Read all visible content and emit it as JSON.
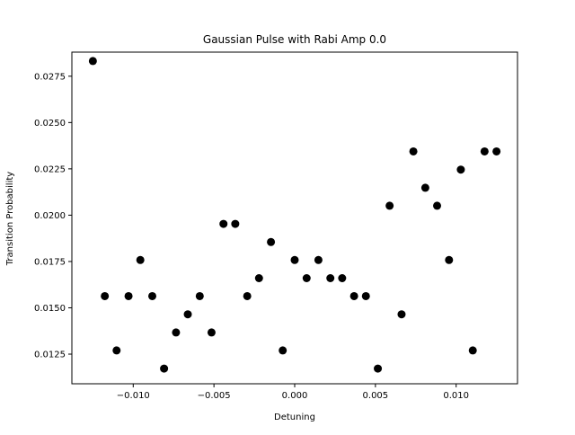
{
  "chart_data": {
    "type": "scatter",
    "title": "Gaussian Pulse with Rabi Amp 0.0",
    "xlabel": "Detuning",
    "ylabel": "Transition Probability",
    "xlim": [
      -0.0138,
      0.0138
    ],
    "ylim": [
      0.0109,
      0.0288
    ],
    "grid": false,
    "xticks": [
      -0.01,
      -0.005,
      0.0,
      0.005,
      0.01
    ],
    "xtick_labels": [
      "−0.010",
      "−0.005",
      "0.000",
      "0.005",
      "0.010"
    ],
    "yticks": [
      0.0125,
      0.015,
      0.0175,
      0.02,
      0.0225,
      0.025,
      0.0275
    ],
    "ytick_labels": [
      "0.0125",
      "0.0150",
      "0.0175",
      "0.0200",
      "0.0225",
      "0.0250",
      "0.0275"
    ],
    "series": [
      {
        "color": "#000000",
        "marker": "circle",
        "points": [
          {
            "x": -0.0125,
            "y": 0.02832
          },
          {
            "x": -0.01176,
            "y": 0.01563
          },
          {
            "x": -0.01103,
            "y": 0.0127
          },
          {
            "x": -0.01029,
            "y": 0.01563
          },
          {
            "x": -0.00956,
            "y": 0.01758
          },
          {
            "x": -0.00882,
            "y": 0.01563
          },
          {
            "x": -0.00809,
            "y": 0.01172
          },
          {
            "x": -0.00735,
            "y": 0.01367
          },
          {
            "x": -0.00662,
            "y": 0.01465
          },
          {
            "x": -0.00588,
            "y": 0.01563
          },
          {
            "x": -0.00515,
            "y": 0.01367
          },
          {
            "x": -0.00441,
            "y": 0.01953
          },
          {
            "x": -0.00368,
            "y": 0.01953
          },
          {
            "x": -0.00294,
            "y": 0.01563
          },
          {
            "x": -0.00221,
            "y": 0.0166
          },
          {
            "x": -0.00147,
            "y": 0.01855
          },
          {
            "x": -0.00074,
            "y": 0.0127
          },
          {
            "x": 0.0,
            "y": 0.01758
          },
          {
            "x": 0.00074,
            "y": 0.0166
          },
          {
            "x": 0.00147,
            "y": 0.01758
          },
          {
            "x": 0.00221,
            "y": 0.0166
          },
          {
            "x": 0.00294,
            "y": 0.0166
          },
          {
            "x": 0.00368,
            "y": 0.01563
          },
          {
            "x": 0.00441,
            "y": 0.01563
          },
          {
            "x": 0.00515,
            "y": 0.01172
          },
          {
            "x": 0.00588,
            "y": 0.02051
          },
          {
            "x": 0.00662,
            "y": 0.01465
          },
          {
            "x": 0.00735,
            "y": 0.02344
          },
          {
            "x": 0.00809,
            "y": 0.02148
          },
          {
            "x": 0.00882,
            "y": 0.02051
          },
          {
            "x": 0.00956,
            "y": 0.01758
          },
          {
            "x": 0.01029,
            "y": 0.02246
          },
          {
            "x": 0.01103,
            "y": 0.0127
          },
          {
            "x": 0.01176,
            "y": 0.02344
          },
          {
            "x": 0.0125,
            "y": 0.02344
          }
        ]
      }
    ]
  }
}
